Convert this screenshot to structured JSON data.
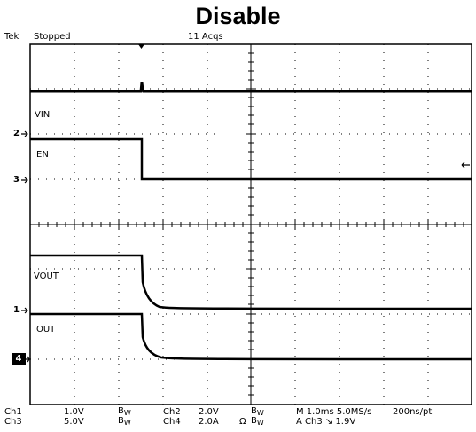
{
  "title": "Disable",
  "header": {
    "brand": "Tek",
    "state": "Stopped",
    "acqs": "11 Acqs"
  },
  "traces": {
    "vin": "VIN",
    "en": "EN",
    "vout": "VOUT",
    "iout": "IOUT"
  },
  "markers": {
    "m2": "2",
    "m3": "3",
    "m1": "1",
    "m4": "4"
  },
  "footer": {
    "ch1": "Ch1",
    "ch1_scale": "1.0V",
    "ch3": "Ch3",
    "ch3_scale": "5.0V",
    "bw_a": "B",
    "bw_b": "B",
    "bw_c": "B",
    "bw_d": "B",
    "bw_sub": "W",
    "ch2": "Ch2",
    "ch2_scale": "2.0V",
    "ch4": "Ch4",
    "ch4_scale": "2.0A",
    "ohm": "Ω",
    "timebase": "M 1.0ms 5.0MS/s",
    "trigger": "A  Ch3  ↘  1.9V",
    "resolution": "200ns/pt"
  }
}
